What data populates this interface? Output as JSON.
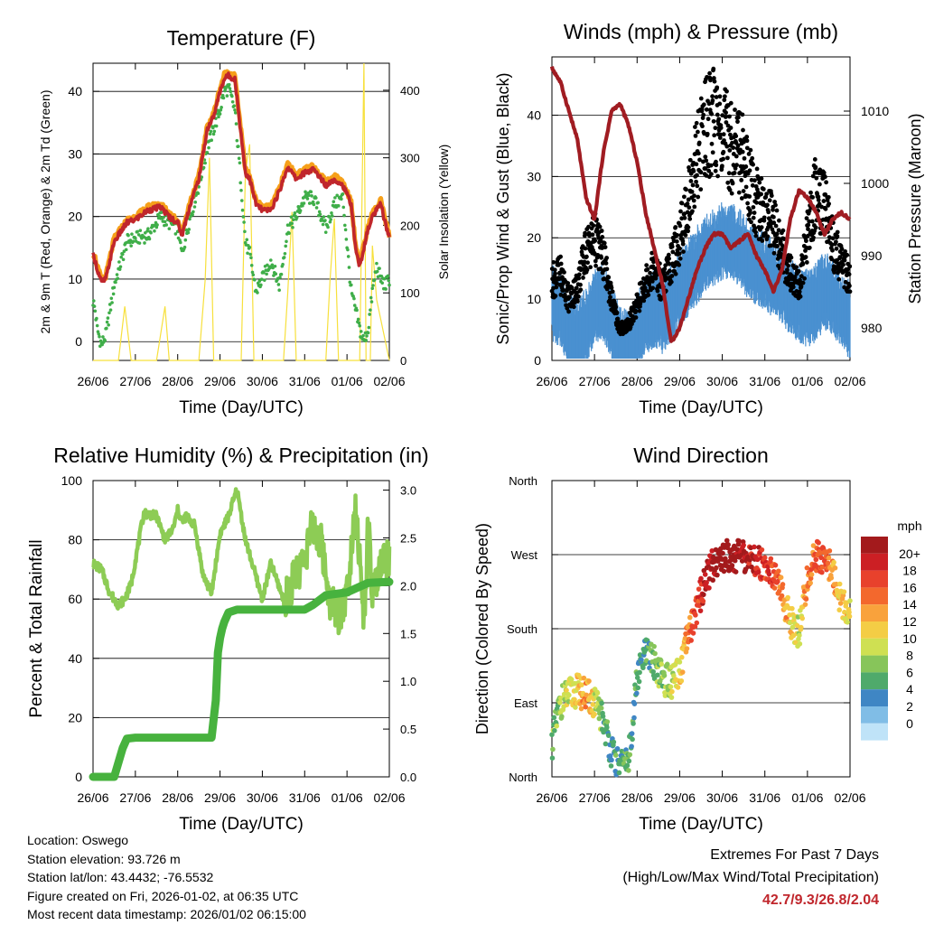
{
  "x_tick_labels": [
    "26/06",
    "27/06",
    "28/06",
    "29/06",
    "30/06",
    "31/06",
    "01/06",
    "02/06"
  ],
  "chart_data": [
    {
      "type": "line",
      "title": "Temperature (F)",
      "xlabel": "Time (Day/UTC)",
      "ylabel": "2m & 9m T (Red, Orange) & 2m Td (Green)",
      "y2label": "Solar Insolation (Yellow)",
      "ylim": [
        -3,
        44.5
      ],
      "yticks": [
        0,
        10,
        20,
        30,
        40
      ],
      "y2lim": [
        0,
        440
      ],
      "y2ticks": [
        0,
        100,
        200,
        300,
        400
      ],
      "x_days": [
        0,
        0.05,
        0.1,
        0.2,
        0.3,
        0.5,
        0.8,
        1.0,
        1.3,
        1.6,
        1.8,
        2.0,
        2.1,
        2.3,
        2.5,
        2.7,
        2.85,
        3.0,
        3.1,
        3.2,
        3.35,
        3.5,
        3.6,
        3.7,
        3.85,
        4.0,
        4.2,
        4.4,
        4.6,
        4.8,
        5.0,
        5.2,
        5.4,
        5.5,
        5.7,
        5.9,
        6.1,
        6.2,
        6.3,
        6.4,
        6.5,
        6.6,
        6.7,
        6.8,
        6.9,
        7.0
      ],
      "series": [
        {
          "name": "2m T",
          "color": "#c0262c",
          "values": [
            13.8,
            13,
            11.5,
            9.5,
            10,
            16,
            19,
            19.5,
            21,
            21.5,
            20,
            19,
            17,
            22,
            26,
            34,
            36,
            40,
            42,
            42.5,
            42,
            33,
            27,
            26,
            22,
            21,
            21,
            24,
            28,
            26,
            27,
            27.5,
            26,
            25,
            26,
            25,
            22,
            15,
            12,
            15,
            18,
            20,
            21,
            22,
            19,
            16.5
          ]
        },
        {
          "name": "9m T",
          "color": "#f6a01a",
          "values": [
            14.2,
            13.4,
            12,
            10,
            10.5,
            16.5,
            19.4,
            20,
            21.5,
            22,
            20.5,
            19.5,
            17.5,
            22.5,
            26.5,
            34.5,
            36.5,
            40.5,
            42.7,
            43,
            42.5,
            33.5,
            27.5,
            26.5,
            22.5,
            21.5,
            21.5,
            24.5,
            28.5,
            26.5,
            27.5,
            28,
            26.5,
            25.5,
            26.5,
            25.5,
            22.5,
            15.5,
            12.5,
            15.5,
            18.5,
            20.5,
            21.5,
            22.5,
            19.5,
            17
          ]
        },
        {
          "name": "2m Td",
          "color": "#3fae49",
          "values": [
            6.5,
            5,
            2,
            -0.5,
            1,
            9,
            16,
            16.5,
            17,
            20,
            19,
            18,
            14,
            20,
            25,
            31,
            34,
            37,
            40,
            40.5,
            37,
            25,
            16,
            14,
            8,
            10,
            13,
            9,
            18,
            20,
            23,
            23,
            20,
            18,
            22,
            23,
            8,
            5,
            2,
            0,
            2,
            8,
            12,
            10,
            9,
            10
          ]
        },
        {
          "name": "Solar Insolation",
          "color": "#f7e03c",
          "axis": "right",
          "x": [
            0,
            0.6,
            0.75,
            0.9,
            1.5,
            1.6,
            1.7,
            1.8,
            1.9,
            2.5,
            2.65,
            2.75,
            2.85,
            3.0,
            3.5,
            3.6,
            3.7,
            3.8,
            4.5,
            4.6,
            4.7,
            4.8,
            5.5,
            5.6,
            5.7,
            5.8,
            6.2,
            6.3,
            6.4,
            6.45,
            6.55,
            6.6,
            6.7,
            7.0
          ],
          "values": [
            0,
            0,
            80,
            0,
            0,
            40,
            80,
            0,
            0,
            0,
            120,
            300,
            0,
            0,
            0,
            280,
            320,
            0,
            0,
            100,
            220,
            0,
            0,
            120,
            210,
            0,
            0,
            0,
            440,
            0,
            0,
            170,
            90,
            0
          ]
        }
      ]
    },
    {
      "type": "scatter",
      "title": "Winds (mph) & Pressure (mb)",
      "xlabel": "Time (Day/UTC)",
      "ylabel": "Sonic/Prop Wind & Gust (Blue, Black)",
      "y2label": "Station Pressure (Maroon)",
      "ylim": [
        0,
        49.5
      ],
      "yticks": [
        0,
        10,
        20,
        30,
        40
      ],
      "y2lim": [
        975.5,
        1017.5
      ],
      "y2ticks": [
        980,
        990,
        1000,
        1010
      ],
      "x_days": [
        0,
        0.2,
        0.4,
        0.6,
        0.8,
        1.0,
        1.2,
        1.4,
        1.6,
        1.8,
        2.0,
        2.2,
        2.4,
        2.6,
        2.8,
        3.0,
        3.2,
        3.4,
        3.6,
        3.8,
        4.0,
        4.2,
        4.4,
        4.6,
        4.8,
        5.0,
        5.2,
        5.4,
        5.6,
        5.8,
        6.0,
        6.2,
        6.4,
        6.6,
        6.8,
        7.0
      ],
      "series": [
        {
          "name": "Wind",
          "color": "#4a90d0",
          "values": [
            10,
            9,
            5,
            4,
            6,
            9,
            10,
            7,
            3,
            2,
            5,
            8,
            9,
            8,
            10,
            12,
            14,
            16,
            18,
            19,
            20,
            20,
            19,
            17,
            16,
            15,
            14,
            13,
            11,
            10,
            9,
            10,
            12,
            11,
            9,
            7
          ]
        },
        {
          "name": "Gust",
          "color": "#000000",
          "values": [
            13,
            14,
            10,
            12,
            18,
            20,
            17,
            10,
            5,
            6,
            9,
            13,
            15,
            12,
            16,
            20,
            26,
            33,
            38,
            39,
            37,
            35,
            35,
            30,
            26,
            24,
            22,
            18,
            14,
            12,
            20,
            28,
            25,
            19,
            16,
            13
          ]
        },
        {
          "name": "Pressure",
          "color": "#a01c22",
          "axis": "right",
          "values": [
            1016,
            1014,
            1010,
            1006,
            998,
            995,
            1004,
            1010,
            1011,
            1008,
            1003,
            996,
            991,
            986,
            978,
            980,
            984,
            988,
            991,
            993,
            993,
            991,
            992,
            993,
            990,
            988,
            985,
            988,
            995,
            999,
            998,
            996,
            993,
            995,
            996,
            995
          ]
        }
      ]
    },
    {
      "type": "line",
      "title": "Relative Humidity (%) & Precipitation (in)",
      "xlabel": "Time (Day/UTC)",
      "ylabel": "Percent & Total Rainfall",
      "ylim": [
        0,
        100
      ],
      "yticks": [
        0,
        20,
        40,
        60,
        80,
        100
      ],
      "y2lim": [
        0,
        3.1
      ],
      "y2ticks": [
        "0.0",
        "0.5",
        "1.0",
        "1.5",
        "2.0",
        "2.5",
        "3.0"
      ],
      "series": [
        {
          "name": "Relative Humidity",
          "color": "#8dcc55",
          "x": [
            0,
            0.2,
            0.4,
            0.6,
            0.75,
            0.9,
            1.2,
            1.5,
            1.7,
            1.9,
            2.0,
            2.1,
            2.2,
            2.4,
            2.6,
            2.8,
            3.0,
            3.2,
            3.4,
            3.6,
            3.8,
            4.0,
            4.2,
            4.5,
            4.8,
            5.0,
            5.2,
            5.4,
            5.6,
            5.8,
            6.0,
            6.2,
            6.4,
            6.5,
            6.6,
            6.8,
            7.0
          ],
          "values": [
            72,
            70,
            62,
            58,
            60,
            65,
            89,
            88,
            80,
            84,
            90,
            86,
            88,
            85,
            68,
            62,
            82,
            88,
            97,
            80,
            70,
            60,
            72,
            60,
            68,
            75,
            85,
            78,
            60,
            55,
            62,
            93,
            52,
            85,
            60,
            70,
            74
          ]
        },
        {
          "name": "Total Precipitation",
          "color": "#47b23e",
          "axis": "right",
          "x": [
            0,
            0.5,
            0.7,
            0.8,
            1.0,
            2.0,
            2.8,
            2.9,
            2.95,
            3.0,
            3.05,
            3.1,
            3.2,
            3.4,
            4.0,
            5.0,
            5.2,
            5.5,
            6.0,
            6.2,
            6.5,
            7.0
          ],
          "values": [
            0.0,
            0.0,
            0.3,
            0.4,
            0.41,
            0.41,
            0.41,
            0.8,
            1.3,
            1.45,
            1.55,
            1.62,
            1.72,
            1.75,
            1.75,
            1.75,
            1.8,
            1.9,
            1.93,
            1.97,
            2.03,
            2.04
          ]
        }
      ]
    },
    {
      "type": "scatter",
      "title": "Wind Direction",
      "xlabel": "Time (Day/UTC)",
      "ylabel": "Direction (Colored By Speed)",
      "yticks": [
        "North",
        "East",
        "South",
        "West",
        "North"
      ],
      "ylim": [
        0,
        360
      ],
      "colorbar": {
        "title": "mph",
        "labels": [
          "20+",
          "18",
          "16",
          "14",
          "12",
          "10",
          "8",
          "6",
          "4",
          "2",
          "0"
        ],
        "colors": [
          "#a31a1c",
          "#cc1f24",
          "#e8412c",
          "#f3682d",
          "#f9a23c",
          "#f4cd45",
          "#cfe052",
          "#87c55a",
          "#4faa6b",
          "#3f86c4",
          "#80bde6",
          "#bfe3f8"
        ]
      },
      "x_days": [
        0,
        0.2,
        0.4,
        0.6,
        0.8,
        1.0,
        1.2,
        1.4,
        1.6,
        1.8,
        2.0,
        2.2,
        2.4,
        2.6,
        2.8,
        3.0,
        3.2,
        3.4,
        3.6,
        3.8,
        4.0,
        4.2,
        4.4,
        4.6,
        4.8,
        5.0,
        5.2,
        5.4,
        5.6,
        5.8,
        6.0,
        6.2,
        6.4,
        6.6,
        6.8,
        7.0
      ],
      "direction": [
        40,
        90,
        100,
        105,
        100,
        90,
        70,
        30,
        10,
        20,
        120,
        150,
        140,
        120,
        115,
        125,
        170,
        205,
        240,
        260,
        268,
        270,
        268,
        265,
        262,
        258,
        250,
        220,
        190,
        175,
        240,
        270,
        265,
        250,
        210,
        200
      ],
      "speed": [
        5,
        7,
        8,
        10,
        12,
        9,
        4,
        3,
        4,
        5,
        3,
        4,
        5,
        6,
        8,
        10,
        13,
        16,
        19,
        20,
        21,
        21,
        20,
        19,
        18,
        17,
        16,
        13,
        10,
        8,
        14,
        15,
        15,
        12,
        10,
        9
      ]
    }
  ],
  "info": {
    "location": "Location: Oswego",
    "elevation": "Station elevation: 93.726 m",
    "latlon": "Station lat/lon: 43.4432; -76.5532",
    "created": "Figure created on Fri, 2026-01-02, at 06:35 UTC",
    "latest": "Most recent data timestamp: 2026/01/02 06:15:00"
  },
  "extremes": {
    "title": "Extremes For Past 7 Days",
    "subtitle": "(High/Low/Max Wind/Total Precipitation)",
    "values": "42.7/9.3/26.8/2.04"
  }
}
